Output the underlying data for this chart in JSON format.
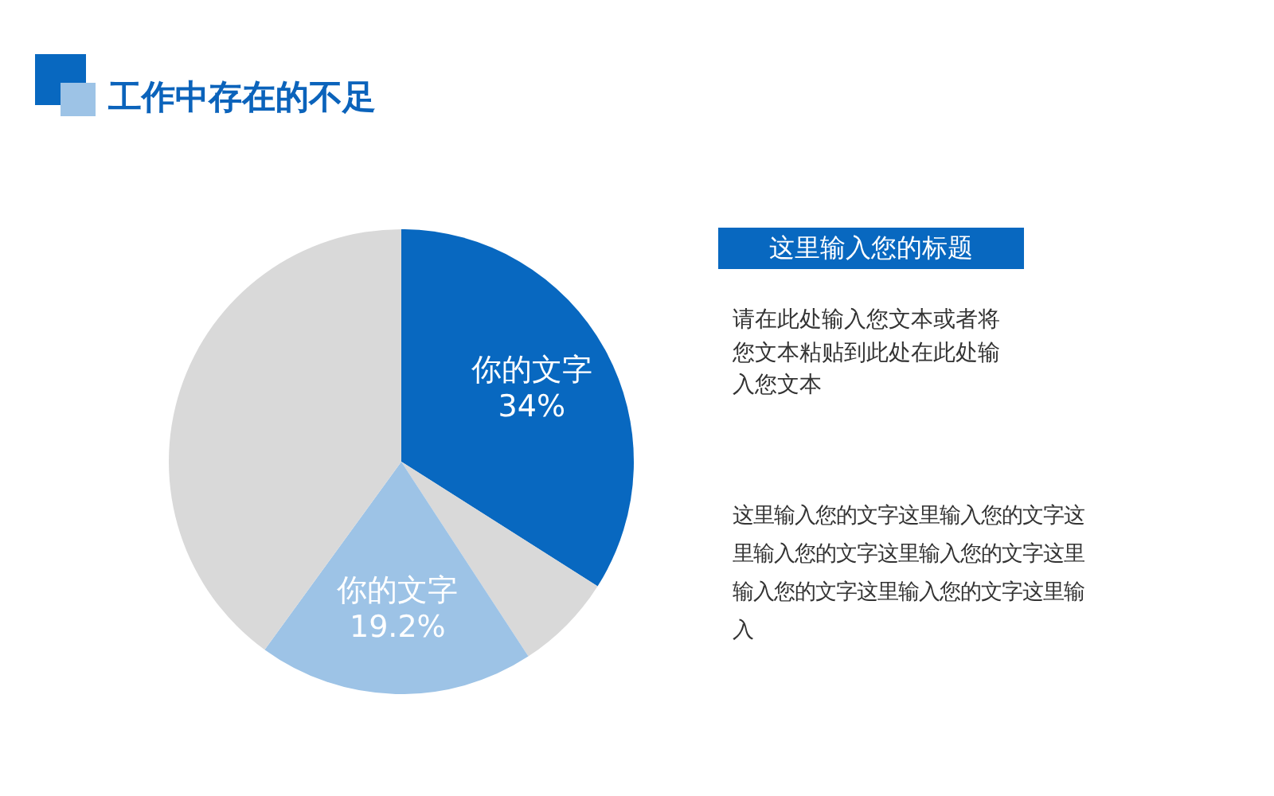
{
  "chart_data": {
    "type": "pie",
    "title": "工作中存在的不足",
    "categories": [
      "你的文字",
      null,
      "你的文字",
      null
    ],
    "values": [
      34,
      6.8,
      19.2,
      40
    ],
    "colors": [
      "#0868c0",
      "#d9d9d9",
      "#9dc3e6",
      "#d9d9d9"
    ],
    "value_labels": [
      "34%",
      null,
      "19.2%",
      null
    ],
    "annotations": [
      "这里输入您的标题",
      "请在此处输入您文本或者将您文本粘贴到此处在此处输入您文本",
      "这里输入您的文字这里输入您的文字这里输入您的文字这里输入您的文字这里输入您的文字这里输入您的文字这里输入"
    ]
  }
}
